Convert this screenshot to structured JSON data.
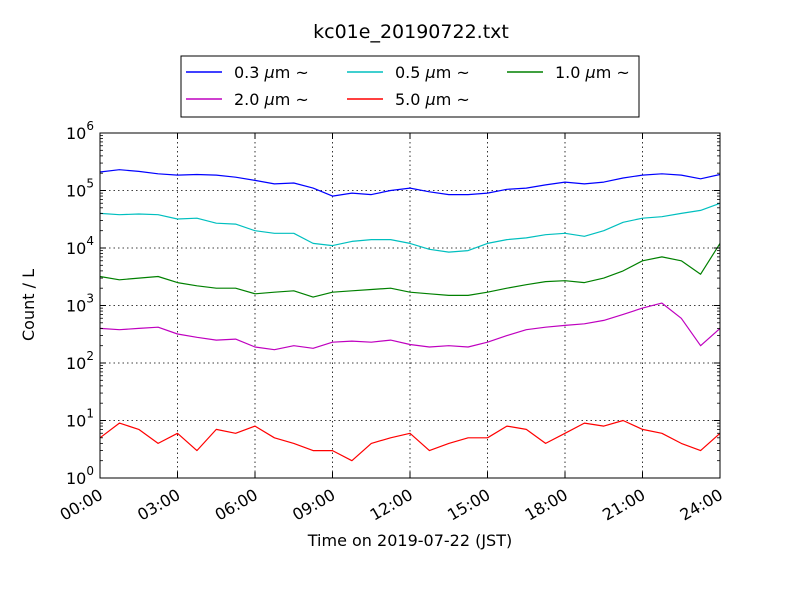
{
  "chart_data": {
    "type": "line",
    "title": "kc01e_20190722.txt",
    "xlabel": "Time on 2019-07-22 (JST)",
    "ylabel": "Count / L",
    "y_scale": "log",
    "ylim": [
      1,
      1000000
    ],
    "xlim": [
      "00:00",
      "24:00"
    ],
    "x_ticks": [
      "00:00",
      "03:00",
      "06:00",
      "09:00",
      "12:00",
      "15:00",
      "18:00",
      "21:00",
      "24:00"
    ],
    "y_ticks": [
      {
        "base": "10",
        "exp": "0"
      },
      {
        "base": "10",
        "exp": "1"
      },
      {
        "base": "10",
        "exp": "2"
      },
      {
        "base": "10",
        "exp": "3"
      },
      {
        "base": "10",
        "exp": "4"
      },
      {
        "base": "10",
        "exp": "5"
      },
      {
        "base": "10",
        "exp": "6"
      }
    ],
    "grid": true,
    "legend_position": "top-center",
    "legend_cols": 3,
    "x_hours": [
      0,
      0.75,
      1.5,
      2.25,
      3,
      3.75,
      4.5,
      5.25,
      6,
      6.75,
      7.5,
      8.25,
      9,
      9.75,
      10.5,
      11.25,
      12,
      12.75,
      13.5,
      14.25,
      15,
      15.75,
      16.5,
      17.25,
      18,
      18.75,
      19.5,
      20.25,
      21,
      21.75,
      22.5,
      23.25,
      24
    ],
    "series": [
      {
        "name": "0.3 μm ~",
        "label_main": "0.3",
        "label_unit": "μm",
        "label_suffix": "~",
        "color": "#0000ff",
        "values": [
          210000,
          230000,
          215000,
          195000,
          185000,
          190000,
          185000,
          170000,
          150000,
          130000,
          135000,
          110000,
          80000,
          90000,
          85000,
          100000,
          110000,
          95000,
          85000,
          85000,
          90000,
          105000,
          110000,
          125000,
          140000,
          130000,
          140000,
          165000,
          185000,
          195000,
          185000,
          160000,
          190000
        ]
      },
      {
        "name": "0.5 μm ~",
        "label_main": "0.5",
        "label_unit": "μm",
        "label_suffix": "~",
        "color": "#00bfbf",
        "values": [
          40000,
          38000,
          39000,
          38000,
          32000,
          33000,
          27000,
          26000,
          20000,
          18000,
          18000,
          12000,
          11000,
          13000,
          14000,
          14000,
          12000,
          9500,
          8500,
          9000,
          12000,
          14000,
          15000,
          17000,
          18000,
          16000,
          20000,
          28000,
          33000,
          35000,
          40000,
          45000,
          60000
        ]
      },
      {
        "name": "1.0 μm ~",
        "label_main": "1.0",
        "label_unit": "μm",
        "label_suffix": "~",
        "color": "#008000",
        "values": [
          3200,
          2800,
          3000,
          3200,
          2500,
          2200,
          2000,
          2000,
          1600,
          1700,
          1800,
          1400,
          1700,
          1800,
          1900,
          2000,
          1700,
          1600,
          1500,
          1500,
          1700,
          2000,
          2300,
          2600,
          2700,
          2500,
          3000,
          4000,
          6000,
          7000,
          6000,
          3500,
          12000
        ]
      },
      {
        "name": "2.0 μm ~",
        "label_main": "2.0",
        "label_unit": "μm",
        "label_suffix": "~",
        "color": "#bf00bf",
        "values": [
          400,
          380,
          400,
          420,
          320,
          280,
          250,
          260,
          190,
          170,
          200,
          180,
          230,
          240,
          230,
          250,
          210,
          190,
          200,
          190,
          230,
          300,
          380,
          420,
          450,
          480,
          550,
          700,
          900,
          1100,
          600,
          200,
          400
        ]
      },
      {
        "name": "5.0 μm ~",
        "label_main": "5.0",
        "label_unit": "μm",
        "label_suffix": "~",
        "color": "#ff0000",
        "values": [
          5,
          9,
          7,
          4,
          6,
          3,
          7,
          6,
          8,
          5,
          4,
          3,
          3,
          2,
          4,
          5,
          6,
          3,
          4,
          5,
          5,
          8,
          7,
          4,
          6,
          9,
          8,
          10,
          7,
          6,
          4,
          3,
          6
        ]
      }
    ]
  }
}
